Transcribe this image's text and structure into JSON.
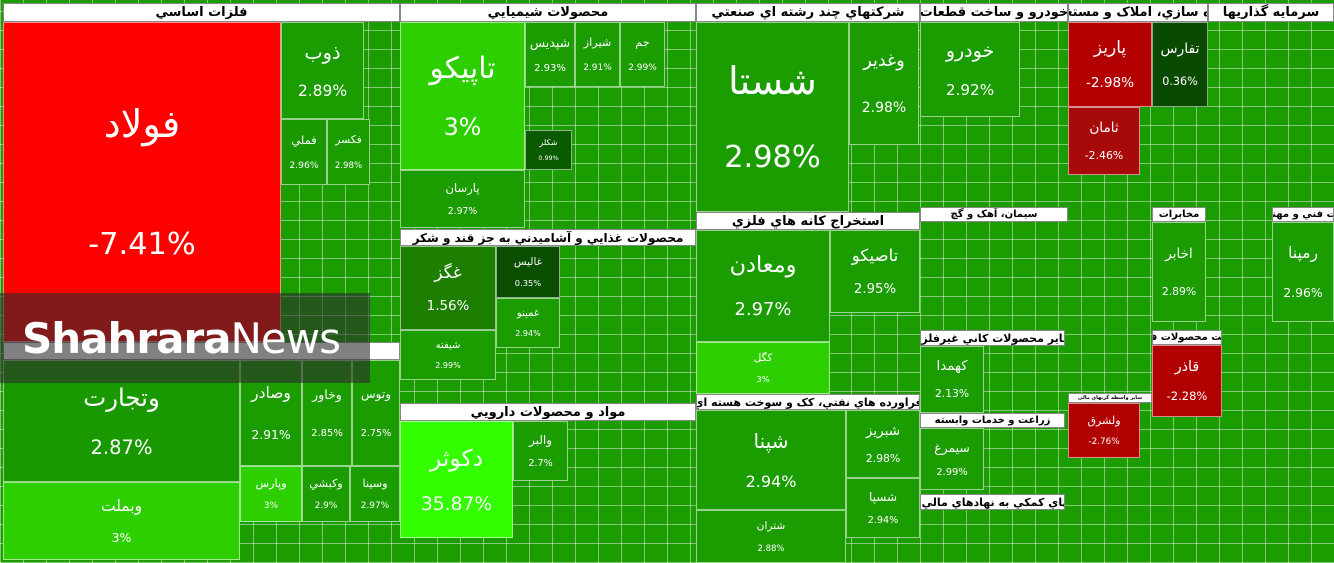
{
  "watermark": {
    "bold": "Shahrara",
    "light": "News"
  },
  "sectors": [
    {
      "title": "فلزات اساسي",
      "tiles": [
        {
          "name": "فولاد",
          "change": "-7.41%"
        },
        {
          "name": "ذوب",
          "change": "2.89%"
        },
        {
          "name": "فملي",
          "change": "2.96%"
        },
        {
          "name": "فکسر",
          "change": "2.98%"
        }
      ]
    },
    {
      "tiles": [
        {
          "name": "وتجارت",
          "change": "2.87%"
        },
        {
          "name": "وبملت",
          "change": "3%"
        },
        {
          "name": "وصادر",
          "change": "2.91%"
        },
        {
          "name": "وخاور",
          "change": "2.85%"
        },
        {
          "name": "وتوس",
          "change": "2.75%"
        },
        {
          "name": "وپارس",
          "change": "3%"
        },
        {
          "name": "وکبشي",
          "change": "2.9%"
        },
        {
          "name": "وسينا",
          "change": "2.97%"
        }
      ]
    },
    {
      "title": "محصولات شيميايي",
      "tiles": [
        {
          "name": "تاپيکو",
          "change": "3%"
        },
        {
          "name": "پارسان",
          "change": "2.97%"
        },
        {
          "name": "شپديس",
          "change": "2.93%"
        },
        {
          "name": "شيراز",
          "change": "2.91%"
        },
        {
          "name": "جم",
          "change": "2.99%"
        },
        {
          "name": "شکلر",
          "change": "0.99%"
        }
      ]
    },
    {
      "title": "محصولات غذايي و آشاميدني به جز قند و شکر",
      "tiles": [
        {
          "name": "غگز",
          "change": "1.56%"
        },
        {
          "name": "غاليس",
          "change": "0.35%"
        },
        {
          "name": "شيفته",
          "change": "2.99%"
        },
        {
          "name": "غمينو",
          "change": "2.94%"
        }
      ]
    },
    {
      "title": "مواد و محصولات دارويي",
      "tiles": [
        {
          "name": "دکوثر",
          "change": "35.87%"
        },
        {
          "name": "والبر",
          "change": "2.7%"
        }
      ]
    },
    {
      "title": "شرکتهاي چند رشته اي صنعتي",
      "tiles": [
        {
          "name": "شستا",
          "change": "2.98%"
        },
        {
          "name": "وغدير",
          "change": "2.98%"
        }
      ]
    },
    {
      "title": "استخراج کانه هاي فلزي",
      "tiles": [
        {
          "name": "ومعادن",
          "change": "2.97%"
        },
        {
          "name": "کگل",
          "change": "3%"
        },
        {
          "name": "تاصيکو",
          "change": "2.95%"
        }
      ]
    },
    {
      "title": "فراورده هاي نفتي، کک و سوخت هسته اي",
      "tiles": [
        {
          "name": "شپنا",
          "change": "2.94%"
        },
        {
          "name": "شتران",
          "change": "2.88%"
        },
        {
          "name": "شبريز",
          "change": "2.98%"
        },
        {
          "name": "شسپا",
          "change": "2.94%"
        }
      ]
    },
    {
      "title": "خودرو و ساخت قطعات",
      "tiles": [
        {
          "name": "خودرو",
          "change": "2.92%"
        }
      ]
    },
    {
      "title": "انبوه سازي، املاک و مستغلات",
      "tiles": [
        {
          "name": "پاريز",
          "change": "-2.98%"
        },
        {
          "name": "تفارس",
          "change": "0.36%"
        },
        {
          "name": "ثامان",
          "change": "-2.46%"
        }
      ]
    },
    {
      "title": "سرمايه گذاريها"
    },
    {
      "title": "سيمان، آهک و گچ"
    },
    {
      "title": "مخابرات",
      "tiles": [
        {
          "name": "اخابر",
          "change": "2.89%"
        }
      ]
    },
    {
      "title": "خدمات فني و مهندسي",
      "tiles": [
        {
          "name": "رمپنا",
          "change": "2.96%"
        }
      ]
    },
    {
      "title": "ساير محصولات کاني غيرفلزي",
      "tiles": [
        {
          "name": "کهمدا",
          "change": "2.13%"
        }
      ]
    },
    {
      "title": "زراعت و خدمات وابسته",
      "tiles": [
        {
          "name": "سيمرغ",
          "change": "2.99%"
        }
      ]
    },
    {
      "title": "فعاليتهاي کمکي به نهادهاي مالي واسط"
    },
    {
      "title": "ساخت محصولات فلزي",
      "tiles": [
        {
          "name": "قاذر",
          "change": "-2.28%"
        }
      ]
    },
    {
      "title": "ساير واسطه گريهاي مالي",
      "tiles": [
        {
          "name": "ولشرق",
          "change": "-2.76%"
        }
      ]
    }
  ]
}
